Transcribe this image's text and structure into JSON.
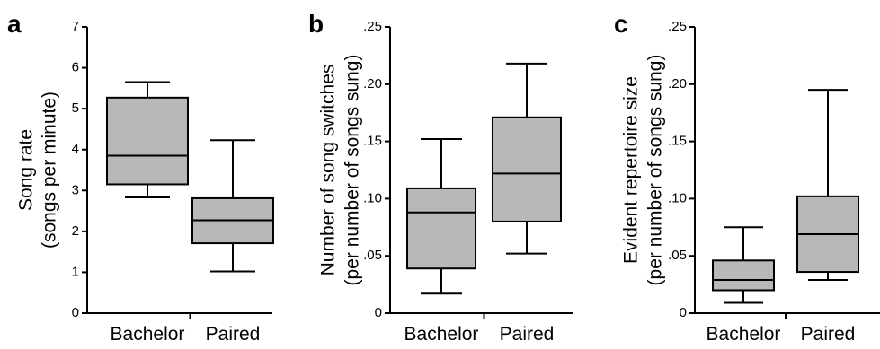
{
  "chart_data": [
    {
      "type": "box",
      "panel_label": "a",
      "ylabel_lines": [
        "Song rate",
        "(songs per minute)"
      ],
      "categories": [
        "Bachelor",
        "Paired"
      ],
      "ylim": [
        0,
        7
      ],
      "yticks": [
        0,
        1,
        2,
        3,
        4,
        5,
        6,
        7
      ],
      "ytick_labels": [
        "0",
        "1",
        "2",
        "3",
        "4",
        "5",
        "6",
        "7"
      ],
      "boxes": [
        {
          "category": "Bachelor",
          "min": 2.83,
          "q1": 3.15,
          "median": 3.85,
          "q3": 5.27,
          "max": 5.65
        },
        {
          "category": "Paired",
          "min": 1.02,
          "q1": 1.71,
          "median": 2.27,
          "q3": 2.81,
          "max": 4.23
        }
      ]
    },
    {
      "type": "box",
      "panel_label": "b",
      "ylabel_lines": [
        "Number of song switches",
        "(per number of songs sung)"
      ],
      "categories": [
        "Bachelor",
        "Paired"
      ],
      "ylim": [
        0,
        0.25
      ],
      "yticks": [
        0,
        0.05,
        0.1,
        0.15,
        0.2,
        0.25
      ],
      "ytick_labels": [
        "0",
        ".05",
        ".10",
        ".15",
        ".20",
        ".25"
      ],
      "boxes": [
        {
          "category": "Bachelor",
          "min": 0.017,
          "q1": 0.039,
          "median": 0.088,
          "q3": 0.109,
          "max": 0.152
        },
        {
          "category": "Paired",
          "min": 0.052,
          "q1": 0.08,
          "median": 0.122,
          "q3": 0.171,
          "max": 0.218
        }
      ]
    },
    {
      "type": "box",
      "panel_label": "c",
      "ylabel_lines": [
        "Evident repertoire size",
        "(per number of songs sung)"
      ],
      "categories": [
        "Bachelor",
        "Paired"
      ],
      "ylim": [
        0,
        0.25
      ],
      "yticks": [
        0,
        0.05,
        0.1,
        0.15,
        0.2,
        0.25
      ],
      "ytick_labels": [
        "0",
        ".05",
        ".10",
        ".15",
        ".20",
        ".25"
      ],
      "boxes": [
        {
          "category": "Bachelor",
          "min": 0.009,
          "q1": 0.02,
          "median": 0.029,
          "q3": 0.046,
          "max": 0.075
        },
        {
          "category": "Paired",
          "min": 0.029,
          "q1": 0.036,
          "median": 0.069,
          "q3": 0.102,
          "max": 0.195
        }
      ]
    }
  ]
}
